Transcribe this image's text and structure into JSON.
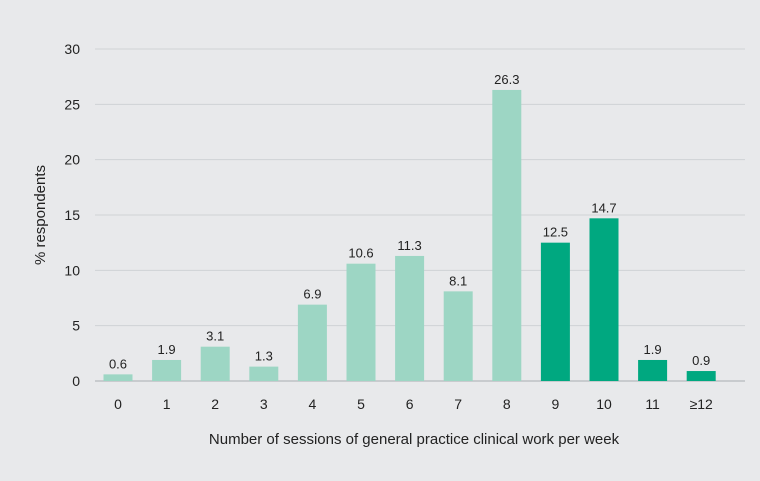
{
  "chart_data": {
    "type": "bar",
    "title": "",
    "xlabel": "Number of sessions of general practice clinical work per week",
    "ylabel": "% respondents",
    "ylim": [
      0,
      30
    ],
    "yticks": [
      0,
      5,
      10,
      15,
      20,
      25,
      30
    ],
    "grid": true,
    "categories": [
      "0",
      "1",
      "2",
      "3",
      "4",
      "5",
      "6",
      "7",
      "8",
      "9",
      "10",
      "11",
      "≥12"
    ],
    "values": [
      0.6,
      1.9,
      3.1,
      1.3,
      6.9,
      10.6,
      11.3,
      8.1,
      26.3,
      12.5,
      14.7,
      1.9,
      0.9
    ],
    "highlighted": [
      false,
      false,
      false,
      false,
      false,
      false,
      false,
      false,
      false,
      true,
      true,
      true,
      true
    ],
    "colors": {
      "light": "#9dd6c4",
      "dark": "#00a880",
      "grid": "#cfd2d6",
      "axis": "#a9adb2"
    }
  }
}
